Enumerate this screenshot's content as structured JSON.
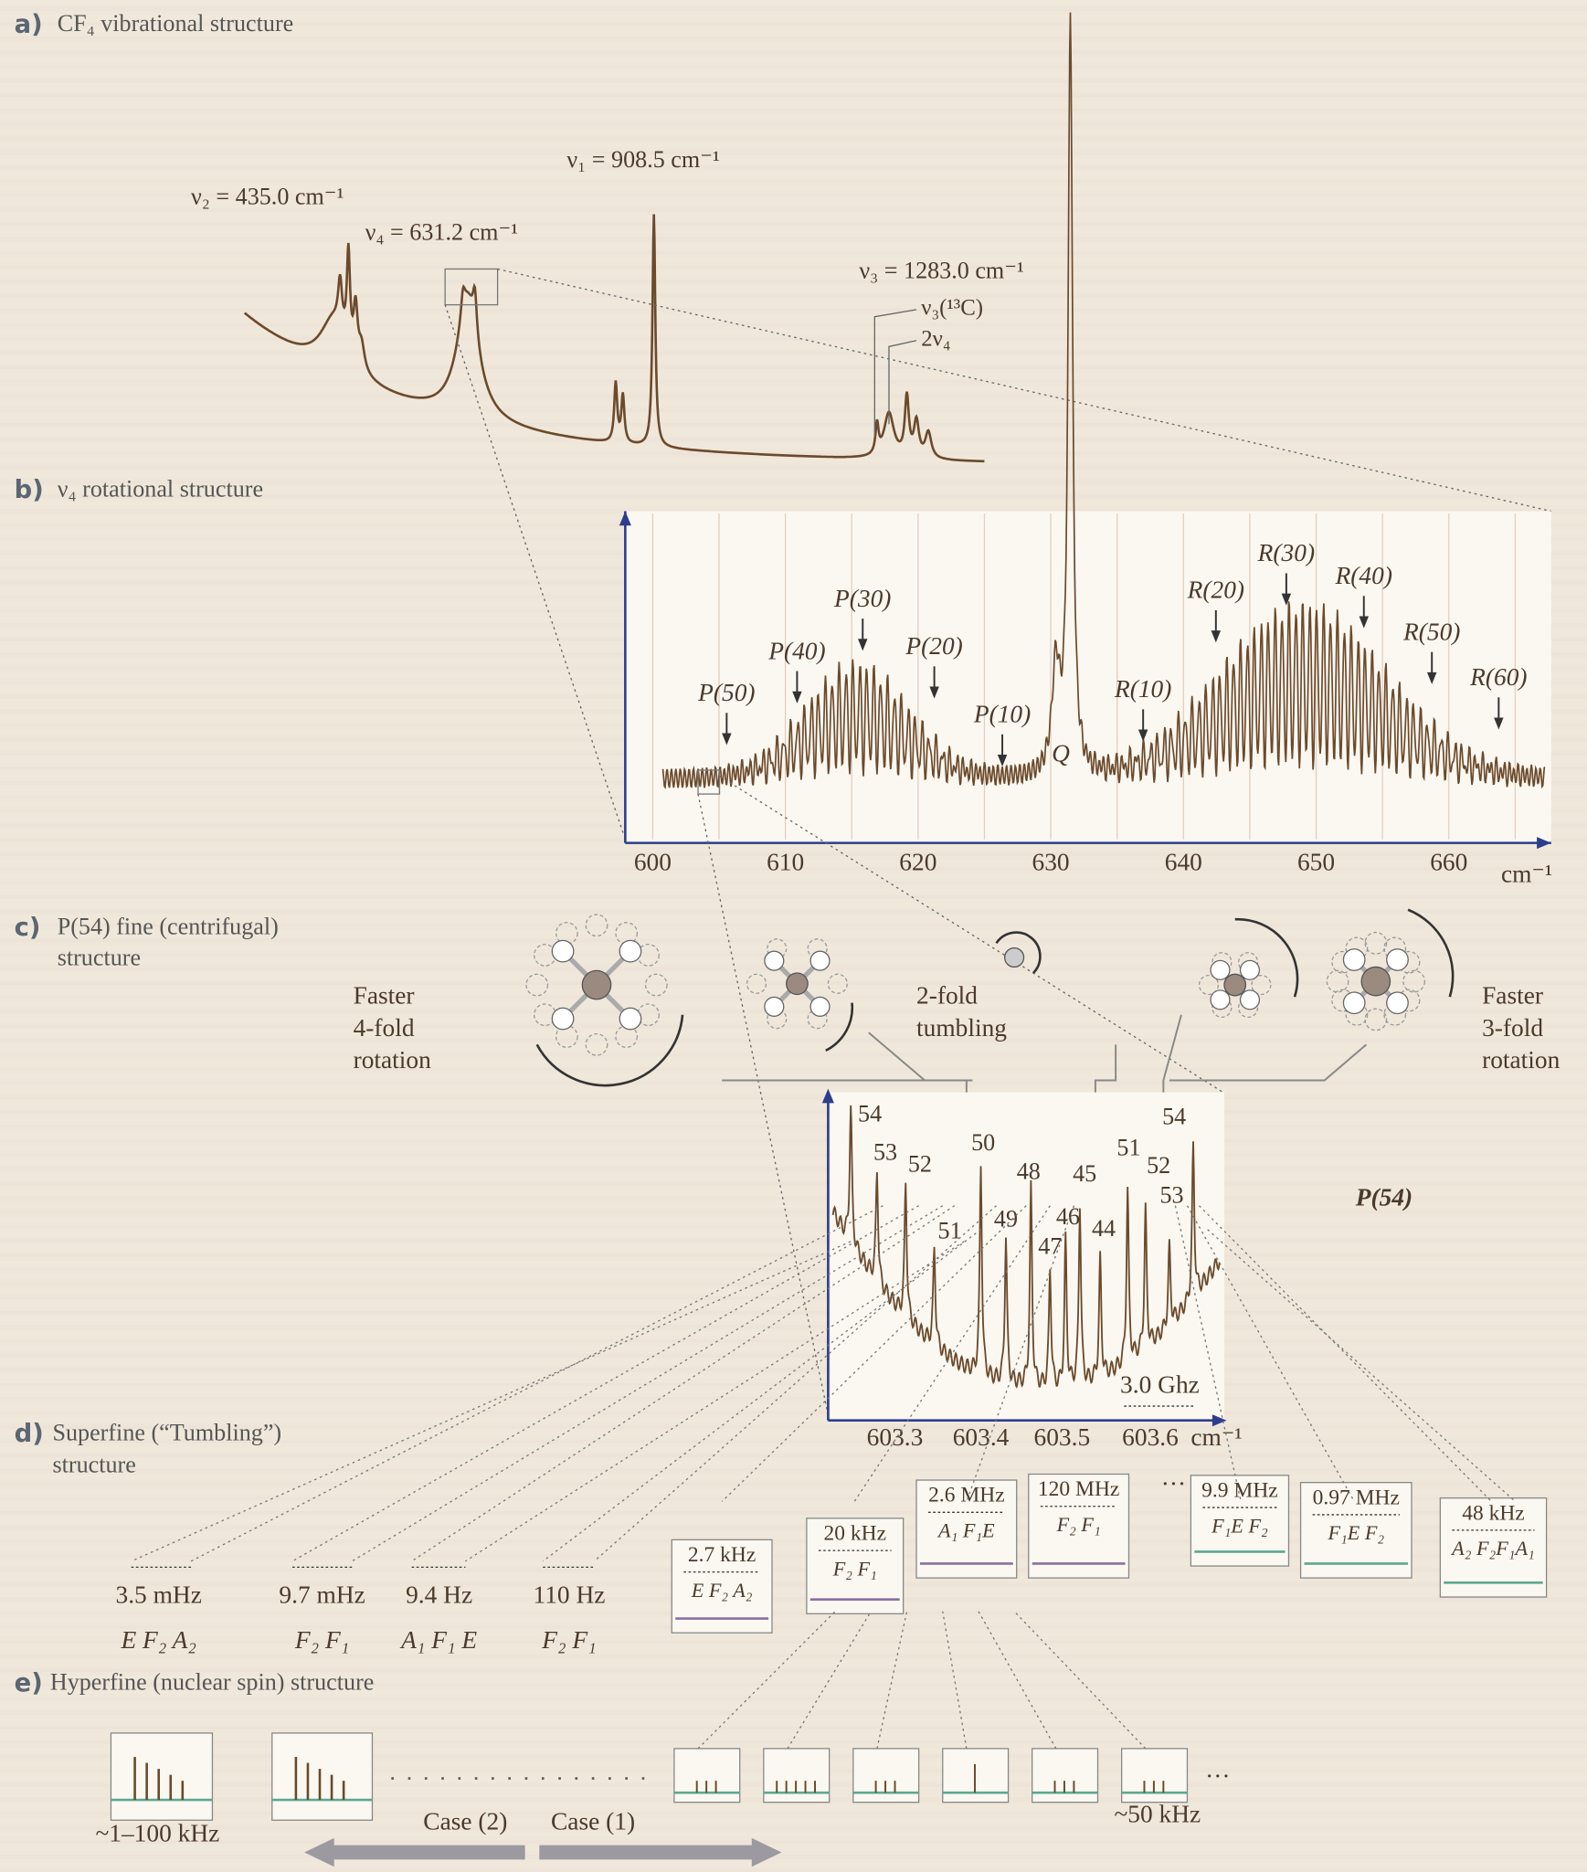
{
  "panel_a": {
    "label": "a)",
    "title": "CF₄ vibrational structure",
    "peak_labels": [
      "ν₂ = 435.0 cm⁻¹",
      "ν₄ = 631.2 cm⁻¹",
      "ν₁ = 908.5 cm⁻¹",
      "ν₃ = 1283.0 cm⁻¹",
      "ν₃(¹³C)",
      "2ν₄"
    ]
  },
  "panel_b": {
    "label": "b)",
    "title": "ν₄ rotational structure",
    "x_ticks": [
      "600",
      "610",
      "620",
      "630",
      "640",
      "650",
      "660"
    ],
    "x_unit": "cm⁻¹",
    "branch_labels": [
      "P(50)",
      "P(40)",
      "P(30)",
      "P(20)",
      "P(10)",
      "Q",
      "R(10)",
      "R(20)",
      "R(30)",
      "R(40)",
      "R(50)",
      "R(60)"
    ]
  },
  "panel_c": {
    "label": "c)",
    "title_lines": [
      "P(54) fine (centrifugal)",
      "structure"
    ],
    "left_note": [
      "Faster",
      "4-fold",
      "rotation"
    ],
    "middle_note": [
      "2-fold",
      "tumbling"
    ],
    "right_note": [
      "Faster",
      "3-fold",
      "rotation"
    ],
    "line_name": "P(54)",
    "peak_numbers": [
      "54",
      "53",
      "52",
      "51",
      "50",
      "49",
      "48",
      "47",
      "46",
      "45",
      "44",
      "51",
      "52",
      "53",
      "54"
    ],
    "x_ticks": [
      "603.3",
      "603.4",
      "603.5",
      "603.6"
    ],
    "x_unit": "cm⁻¹",
    "scale_bar": "3.0 Ghz"
  },
  "panel_d": {
    "label": "d)",
    "title_lines": [
      "Superfine (“Tumbling”)",
      "structure"
    ],
    "splittings": [
      {
        "width": "3.5 mHz",
        "species": "E F₂ A₂"
      },
      {
        "width": "9.7 mHz",
        "species": "F₂ F₁"
      },
      {
        "width": "9.4 Hz",
        "species": "A₁ F₁ E"
      },
      {
        "width": "110 Hz",
        "species": "F₂ F₁"
      }
    ],
    "clusters": [
      {
        "width": "2.7 kHz",
        "species": "E F₂ A₂"
      },
      {
        "width": "20 kHz",
        "species": "F₂ F₁"
      },
      {
        "width": "2.6 MHz",
        "species": "A₁ F₁E"
      },
      {
        "width": "120 MHz",
        "species": "F₂ F₁"
      },
      {
        "width": "9.9 MHz",
        "species": "F₁E F₂"
      },
      {
        "width": "0.97 MHz",
        "species": "F₁E F₂"
      },
      {
        "width": "48 kHz",
        "species": "A₂ F₂F₁A₁"
      }
    ],
    "ellipsis": "···"
  },
  "panel_e": {
    "label": "e)",
    "title": "Hyperfine (nuclear spin) structure",
    "left_width": "~1–100 kHz",
    "right_width": "~50 kHz",
    "case_2": "Case (2)",
    "case_1": "Case (1)",
    "ellipsis": "···"
  }
}
